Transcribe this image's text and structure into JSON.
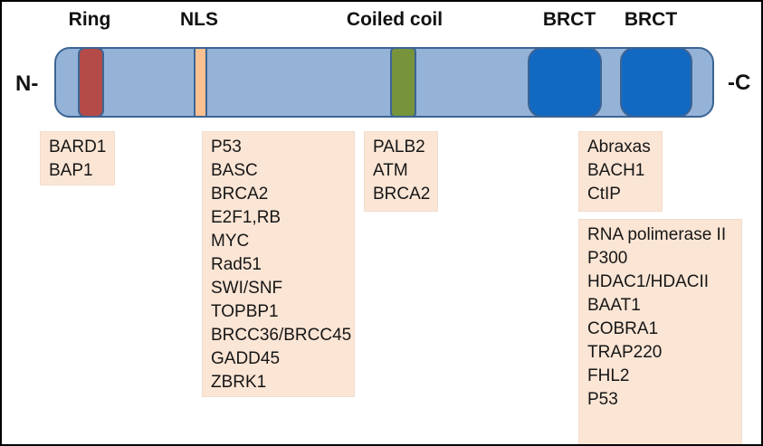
{
  "diagram": {
    "description": "BRCA1 protein domain structure with interacting proteins",
    "domain_labels": {
      "ring": "Ring",
      "nls": "NLS",
      "coiled_coil": "Coiled coil",
      "brct1": "BRCT",
      "brct2": "BRCT"
    },
    "terminus": {
      "n": "N-",
      "c": "-C"
    },
    "colors": {
      "bar_fill": "#95B3D7",
      "bar_border": "#3C6494",
      "ring_fill": "#B44B48",
      "nls_fill": "#FAC090",
      "coiled_coil_fill": "#77933C",
      "brct_fill": "#1169C2",
      "box_fill": "#FBE5D5"
    },
    "interaction_boxes": {
      "ring": {
        "items": [
          "BARD1",
          "BAP1"
        ]
      },
      "nls": {
        "items": [
          "P53",
          "BASC",
          "BRCA2",
          "E2F1,RB",
          "MYC",
          "Rad51",
          "SWI/SNF",
          "TOPBP1",
          "BRCC36/BRCC45",
          "GADD45",
          "ZBRK1"
        ]
      },
      "coiled_coil": {
        "items": [
          "PALB2",
          "ATM",
          "BRCA2"
        ]
      },
      "brct_top": {
        "items": [
          "Abraxas",
          "BACH1",
          "CtIP"
        ]
      },
      "brct_bottom": {
        "items": [
          "RNA polimerase II",
          "P300",
          "HDAC1/HDACII",
          "BAAT1",
          "COBRA1",
          "TRAP220",
          "FHL2",
          "P53"
        ]
      }
    }
  }
}
